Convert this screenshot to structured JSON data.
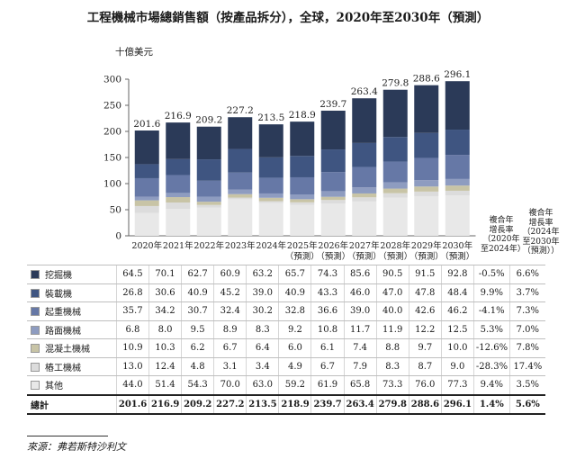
{
  "title": "工程機械市場總銷售額（按產品拆分），全球，2020年至2030年（預測）",
  "unit_label": "十億美元",
  "source": "來源：弗若斯特沙利文",
  "colors": [
    "#2b3a58",
    "#3f5581",
    "#6678a6",
    "#8e9cc0",
    "#c8c4a6",
    "#dcdcdc",
    "#e8e8e8"
  ],
  "chart_data": {
    "type": "bar",
    "stacked": true,
    "categories": [
      "2020年",
      "2021年",
      "2022年",
      "2023年",
      "2024年",
      "2025年\n（預測）",
      "2026年\n（預測）",
      "2027年\n（預測）",
      "2028年\n（預測）",
      "2029年\n（預測）",
      "2030年\n（預測）"
    ],
    "series": [
      {
        "name": "其他",
        "values": [
          44.0,
          51.4,
          54.3,
          70.0,
          63.0,
          59.2,
          61.9,
          65.8,
          73.3,
          76.0,
          77.3
        ]
      },
      {
        "name": "樁工機械",
        "values": [
          13.0,
          12.4,
          4.8,
          3.1,
          3.4,
          4.9,
          6.7,
          7.9,
          8.3,
          8.7,
          9.0
        ]
      },
      {
        "name": "混凝土機械",
        "values": [
          10.9,
          10.3,
          6.2,
          6.7,
          6.4,
          6.0,
          6.1,
          7.4,
          8.8,
          9.7,
          10.0
        ]
      },
      {
        "name": "路面機械",
        "values": [
          6.8,
          8.0,
          9.5,
          8.9,
          8.3,
          9.2,
          10.8,
          11.7,
          11.9,
          12.2,
          12.5
        ]
      },
      {
        "name": "起重機械",
        "values": [
          35.7,
          34.2,
          30.7,
          32.4,
          30.2,
          32.8,
          36.6,
          39.0,
          40.0,
          42.6,
          46.2
        ]
      },
      {
        "name": "裝載機",
        "values": [
          26.8,
          30.6,
          40.9,
          45.2,
          39.0,
          40.9,
          43.3,
          46.0,
          47.0,
          47.8,
          48.4
        ]
      },
      {
        "name": "挖掘機",
        "values": [
          64.5,
          70.1,
          62.7,
          60.9,
          63.2,
          65.7,
          74.3,
          85.6,
          90.5,
          91.5,
          92.8
        ]
      }
    ],
    "totals": [
      "201.6",
      "216.9",
      "209.2",
      "227.2",
      "213.5",
      "218.9",
      "239.7",
      "263.4",
      "279.8",
      "288.6",
      "296.1"
    ],
    "ylim": [
      0,
      300
    ],
    "yticks": [
      "0",
      "50",
      "100",
      "150",
      "200",
      "250",
      "300"
    ],
    "grid": false
  },
  "cagr_headers": [
    [
      "複合年",
      "增長率",
      "（2020年",
      "至2024年）"
    ],
    [
      "複合年",
      "增長率",
      "（2024年",
      "至2030年",
      "（預測））"
    ]
  ],
  "table_rows": [
    {
      "label": "挖掘機",
      "values": [
        "64.5",
        "70.1",
        "62.7",
        "60.9",
        "63.2",
        "65.7",
        "74.3",
        "85.6",
        "90.5",
        "91.5",
        "92.8"
      ],
      "cagr1": "-0.5%",
      "cagr2": "6.6%"
    },
    {
      "label": "裝載機",
      "values": [
        "26.8",
        "30.6",
        "40.9",
        "45.2",
        "39.0",
        "40.9",
        "43.3",
        "46.0",
        "47.0",
        "47.8",
        "48.4"
      ],
      "cagr1": "9.9%",
      "cagr2": "3.7%"
    },
    {
      "label": "起重機械",
      "values": [
        "35.7",
        "34.2",
        "30.7",
        "32.4",
        "30.2",
        "32.8",
        "36.6",
        "39.0",
        "40.0",
        "42.6",
        "46.2"
      ],
      "cagr1": "-4.1%",
      "cagr2": "7.3%"
    },
    {
      "label": "路面機械",
      "values": [
        "6.8",
        "8.0",
        "9.5",
        "8.9",
        "8.3",
        "9.2",
        "10.8",
        "11.7",
        "11.9",
        "12.2",
        "12.5"
      ],
      "cagr1": "5.3%",
      "cagr2": "7.0%"
    },
    {
      "label": "混凝土機械",
      "values": [
        "10.9",
        "10.3",
        "6.2",
        "6.7",
        "6.4",
        "6.0",
        "6.1",
        "7.4",
        "8.8",
        "9.7",
        "10.0"
      ],
      "cagr1": "-12.6%",
      "cagr2": "7.8%"
    },
    {
      "label": "樁工機械",
      "values": [
        "13.0",
        "12.4",
        "4.8",
        "3.1",
        "3.4",
        "4.9",
        "6.7",
        "7.9",
        "8.3",
        "8.7",
        "9.0"
      ],
      "cagr1": "-28.3%",
      "cagr2": "17.4%"
    },
    {
      "label": "其他",
      "values": [
        "44.0",
        "51.4",
        "54.3",
        "70.0",
        "63.0",
        "59.2",
        "61.9",
        "65.8",
        "73.3",
        "76.0",
        "77.3"
      ],
      "cagr1": "9.4%",
      "cagr2": "3.5%"
    }
  ],
  "total_row": {
    "label": "總計",
    "values": [
      "201.6",
      "216.9",
      "209.2",
      "227.2",
      "213.5",
      "218.9",
      "239.7",
      "263.4",
      "279.8",
      "288.6",
      "296.1"
    ],
    "cagr1": "1.4%",
    "cagr2": "5.6%"
  }
}
